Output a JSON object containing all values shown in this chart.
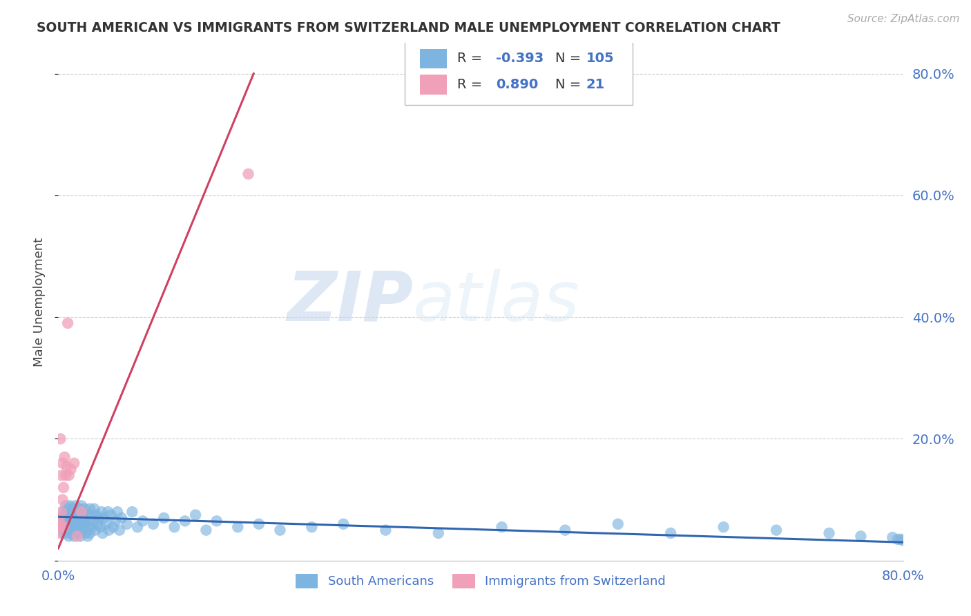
{
  "title": "SOUTH AMERICAN VS IMMIGRANTS FROM SWITZERLAND MALE UNEMPLOYMENT CORRELATION CHART",
  "source": "Source: ZipAtlas.com",
  "ylabel": "Male Unemployment",
  "xlim": [
    0.0,
    0.8
  ],
  "ylim": [
    0.0,
    0.85
  ],
  "yticks": [
    0.0,
    0.2,
    0.4,
    0.6,
    0.8
  ],
  "right_ytick_labels": [
    "",
    "20.0%",
    "40.0%",
    "60.0%",
    "80.0%"
  ],
  "blue_color": "#7EB4E0",
  "blue_line_color": "#3065B0",
  "pink_color": "#F0A0B8",
  "pink_line_color": "#D04060",
  "legend_R_blue": "-0.393",
  "legend_N_blue": "105",
  "legend_R_pink": "0.890",
  "legend_N_pink": "21",
  "watermark_zip": "ZIP",
  "watermark_atlas": "atlas",
  "background_color": "#ffffff",
  "blue_scatter_x": [
    0.002,
    0.003,
    0.004,
    0.004,
    0.005,
    0.005,
    0.006,
    0.006,
    0.007,
    0.007,
    0.008,
    0.008,
    0.009,
    0.009,
    0.01,
    0.01,
    0.01,
    0.011,
    0.011,
    0.012,
    0.012,
    0.012,
    0.013,
    0.013,
    0.014,
    0.014,
    0.015,
    0.015,
    0.016,
    0.016,
    0.017,
    0.017,
    0.018,
    0.018,
    0.019,
    0.02,
    0.02,
    0.021,
    0.021,
    0.022,
    0.022,
    0.023,
    0.023,
    0.024,
    0.024,
    0.025,
    0.025,
    0.026,
    0.027,
    0.028,
    0.028,
    0.029,
    0.03,
    0.03,
    0.031,
    0.032,
    0.033,
    0.034,
    0.035,
    0.036,
    0.037,
    0.038,
    0.04,
    0.041,
    0.042,
    0.043,
    0.045,
    0.047,
    0.048,
    0.05,
    0.052,
    0.054,
    0.056,
    0.058,
    0.06,
    0.065,
    0.07,
    0.075,
    0.08,
    0.09,
    0.1,
    0.11,
    0.12,
    0.13,
    0.14,
    0.15,
    0.17,
    0.19,
    0.21,
    0.24,
    0.27,
    0.31,
    0.36,
    0.42,
    0.48,
    0.53,
    0.58,
    0.63,
    0.68,
    0.73,
    0.76,
    0.79,
    0.795,
    0.798,
    0.8
  ],
  "blue_scatter_y": [
    0.065,
    0.055,
    0.07,
    0.045,
    0.08,
    0.05,
    0.06,
    0.075,
    0.055,
    0.09,
    0.045,
    0.07,
    0.06,
    0.085,
    0.05,
    0.075,
    0.04,
    0.065,
    0.09,
    0.055,
    0.08,
    0.045,
    0.07,
    0.06,
    0.085,
    0.05,
    0.075,
    0.04,
    0.065,
    0.09,
    0.055,
    0.08,
    0.05,
    0.07,
    0.06,
    0.085,
    0.045,
    0.075,
    0.04,
    0.065,
    0.09,
    0.055,
    0.08,
    0.05,
    0.07,
    0.06,
    0.085,
    0.045,
    0.075,
    0.04,
    0.065,
    0.055,
    0.085,
    0.045,
    0.075,
    0.055,
    0.065,
    0.085,
    0.05,
    0.075,
    0.06,
    0.07,
    0.055,
    0.08,
    0.045,
    0.07,
    0.06,
    0.08,
    0.05,
    0.075,
    0.055,
    0.065,
    0.08,
    0.05,
    0.07,
    0.06,
    0.08,
    0.055,
    0.065,
    0.06,
    0.07,
    0.055,
    0.065,
    0.075,
    0.05,
    0.065,
    0.055,
    0.06,
    0.05,
    0.055,
    0.06,
    0.05,
    0.045,
    0.055,
    0.05,
    0.06,
    0.045,
    0.055,
    0.05,
    0.045,
    0.04,
    0.038,
    0.035,
    0.035,
    0.033
  ],
  "pink_scatter_x": [
    0.0,
    0.001,
    0.001,
    0.002,
    0.002,
    0.003,
    0.003,
    0.004,
    0.004,
    0.005,
    0.005,
    0.006,
    0.007,
    0.008,
    0.009,
    0.01,
    0.012,
    0.015,
    0.018,
    0.022,
    0.18
  ],
  "pink_scatter_y": [
    0.055,
    0.07,
    0.045,
    0.2,
    0.06,
    0.14,
    0.08,
    0.16,
    0.1,
    0.12,
    0.055,
    0.17,
    0.14,
    0.155,
    0.39,
    0.14,
    0.15,
    0.16,
    0.04,
    0.08,
    0.635
  ],
  "blue_trend_x": [
    0.0,
    0.8
  ],
  "blue_trend_y": [
    0.072,
    0.03
  ],
  "pink_trend_x": [
    0.0,
    0.185
  ],
  "pink_trend_y": [
    0.02,
    0.8
  ]
}
